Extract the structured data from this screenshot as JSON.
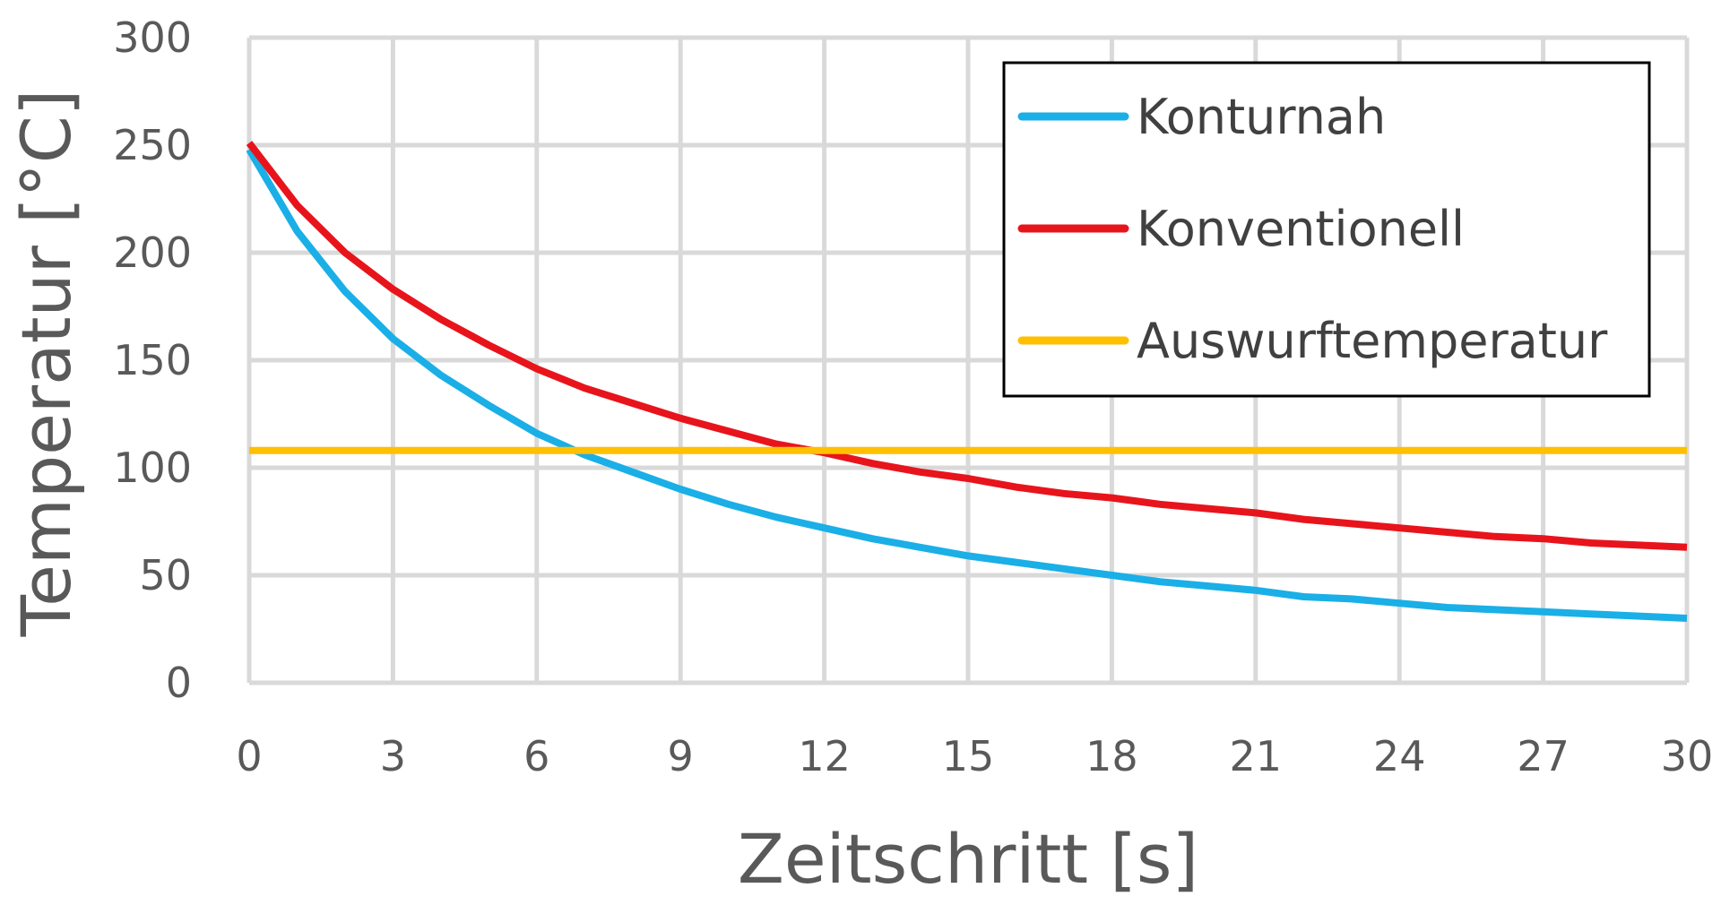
{
  "chart_data": {
    "type": "line",
    "xlabel": "Zeitschritt [s]",
    "ylabel": "Temperatur [°C]",
    "xlim": [
      0,
      30
    ],
    "ylim": [
      0,
      300
    ],
    "xticks": [
      "0",
      "3",
      "6",
      "9",
      "12",
      "15",
      "18",
      "21",
      "24",
      "27",
      "30"
    ],
    "yticks": [
      "0",
      "50",
      "100",
      "150",
      "200",
      "250",
      "300"
    ],
    "grid": true,
    "legend_position": "top-right",
    "series": [
      {
        "name": "Konturnah",
        "color": "#1AAFE6",
        "x": [
          0,
          1,
          2,
          3,
          4,
          5,
          6,
          7,
          8,
          9,
          10,
          11,
          12,
          13,
          14,
          15,
          16,
          17,
          18,
          19,
          20,
          21,
          22,
          23,
          24,
          25,
          26,
          27,
          28,
          29,
          30
        ],
        "y": [
          248,
          210,
          182,
          160,
          143,
          129,
          116,
          106,
          98,
          90,
          83,
          77,
          72,
          67,
          63,
          59,
          56,
          53,
          50,
          47,
          45,
          43,
          40,
          39,
          37,
          35,
          34,
          33,
          32,
          31,
          30
        ]
      },
      {
        "name": "Konventionell",
        "color": "#E8141C",
        "x": [
          0,
          1,
          2,
          3,
          4,
          5,
          6,
          7,
          8,
          9,
          10,
          11,
          12,
          13,
          14,
          15,
          16,
          17,
          18,
          19,
          20,
          21,
          22,
          23,
          24,
          25,
          26,
          27,
          28,
          29,
          30
        ],
        "y": [
          251,
          222,
          200,
          183,
          169,
          157,
          146,
          137,
          130,
          123,
          117,
          111,
          107,
          102,
          98,
          95,
          91,
          88,
          86,
          83,
          81,
          79,
          76,
          74,
          72,
          70,
          68,
          67,
          65,
          64,
          63
        ]
      },
      {
        "name": "Auswurftemperatur",
        "color": "#FFC000",
        "x": [
          0,
          30
        ],
        "y": [
          108,
          108
        ]
      }
    ]
  }
}
